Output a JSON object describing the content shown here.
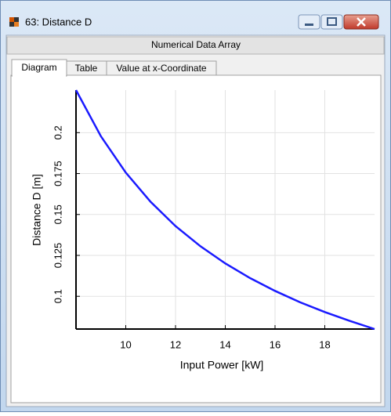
{
  "window": {
    "title": "63: Distance D"
  },
  "header": "Numerical Data Array",
  "tabs": [
    "Diagram",
    "Table",
    "Value at x-Coordinate"
  ],
  "chart_data": {
    "type": "line",
    "xlabel": "Input Power [kW]",
    "ylabel": "Distance D [m]",
    "x": [
      8,
      9,
      10,
      11,
      12,
      13,
      14,
      15,
      16,
      17,
      18,
      19,
      20
    ],
    "values": [
      0.226,
      0.1978,
      0.1756,
      0.1577,
      0.1429,
      0.1306,
      0.1201,
      0.1111,
      0.1033,
      0.0964,
      0.0904,
      0.085,
      0.08
    ],
    "color": "#1a1aff",
    "xlim": [
      8,
      20
    ],
    "xticks": [
      10,
      12,
      14,
      16,
      18
    ],
    "ylim": [
      0.08,
      0.226
    ],
    "yticks": [
      0.1,
      0.125,
      0.15,
      0.175,
      0.2
    ],
    "grid": true
  }
}
